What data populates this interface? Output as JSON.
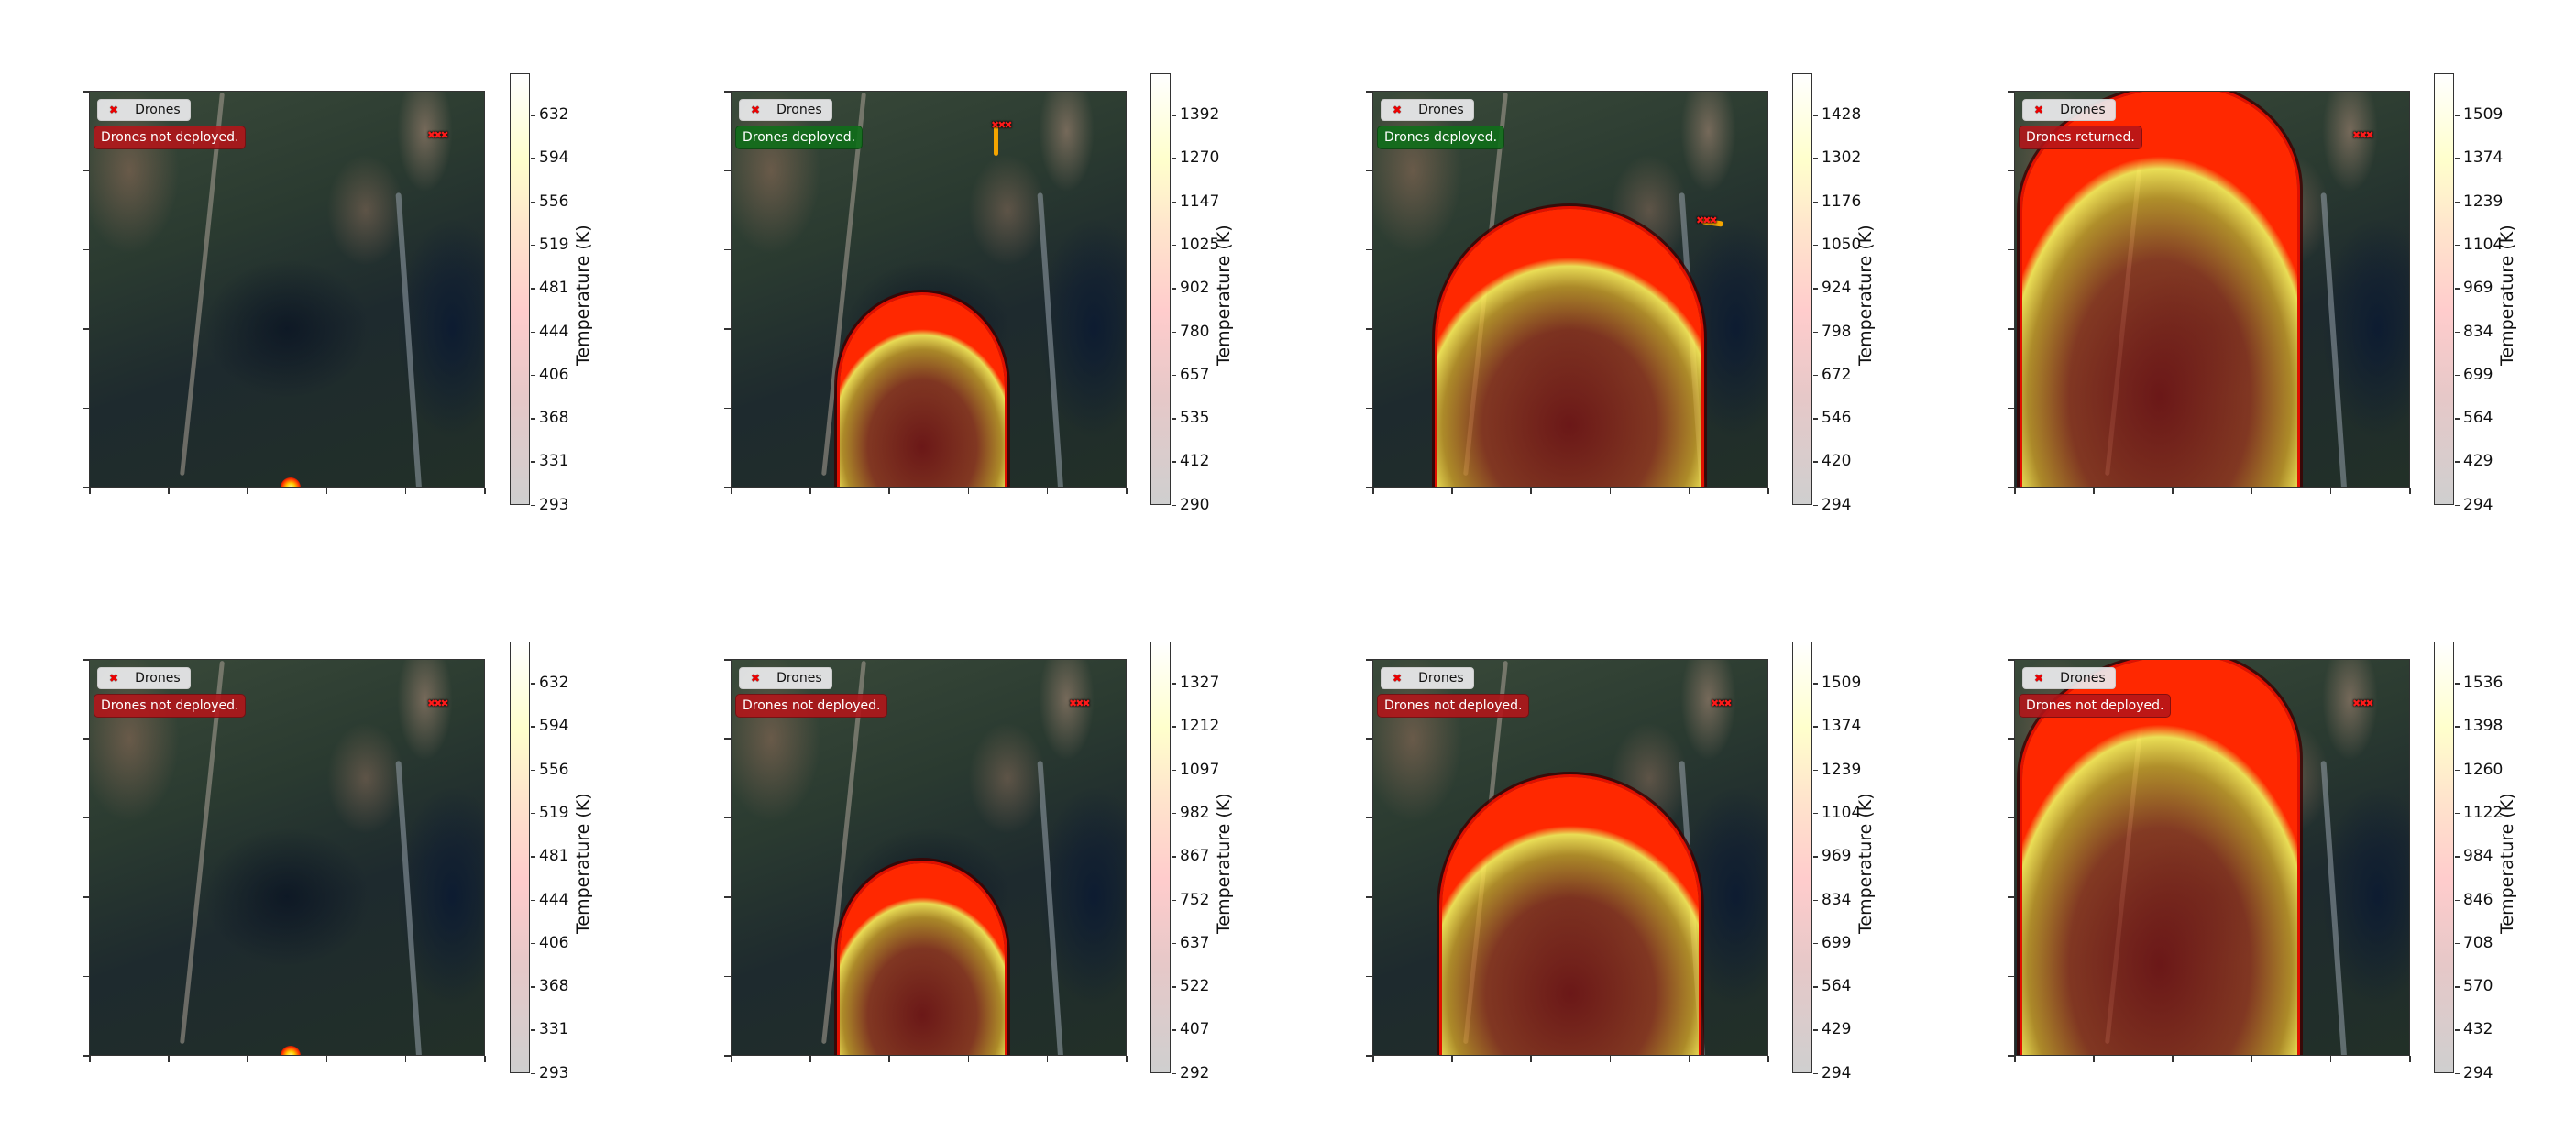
{
  "chart_data": [
    {
      "type": "heatmap",
      "row": 1,
      "col": 1,
      "legend": "Drones",
      "status": "Drones not deployed.",
      "status_color": "#b41419",
      "colorbar_label": "Temperature (K)",
      "colorbar_ticks": [
        293,
        331,
        368,
        406,
        444,
        481,
        519,
        556,
        594,
        632
      ],
      "fire": "small spot at bottom center",
      "drones": "clustered top-right, no trail"
    },
    {
      "type": "heatmap",
      "row": 1,
      "col": 2,
      "legend": "Drones",
      "status": "Drones deployed.",
      "status_color": "#0f6e19",
      "colorbar_label": "Temperature (K)",
      "colorbar_ticks": [
        290,
        412,
        535,
        657,
        780,
        902,
        1025,
        1147,
        1270,
        1392
      ],
      "fire": "dome front at lower center",
      "drones": "top center with orange trail heading down"
    },
    {
      "type": "heatmap",
      "row": 1,
      "col": 3,
      "legend": "Drones",
      "status": "Drones deployed.",
      "status_color": "#0f6e19",
      "colorbar_label": "Temperature (K)",
      "colorbar_ticks": [
        294,
        420,
        546,
        672,
        798,
        924,
        1050,
        1176,
        1302,
        1428
      ],
      "fire": "large dome front",
      "drones": "right side with orange trail"
    },
    {
      "type": "heatmap",
      "row": 1,
      "col": 4,
      "legend": "Drones",
      "status": "Drones returned.",
      "status_color": "#b41419",
      "colorbar_label": "Temperature (K)",
      "colorbar_ticks": [
        294,
        429,
        564,
        699,
        834,
        969,
        1104,
        1239,
        1374,
        1509
      ],
      "fire": "fills most of panel",
      "drones": "clustered top-right"
    },
    {
      "type": "heatmap",
      "row": 2,
      "col": 1,
      "legend": "Drones",
      "status": "Drones not deployed.",
      "status_color": "#b41419",
      "colorbar_label": "Temperature (K)",
      "colorbar_ticks": [
        293,
        331,
        368,
        406,
        444,
        481,
        519,
        556,
        594,
        632
      ],
      "fire": "small spot at bottom center",
      "drones": "clustered top-right"
    },
    {
      "type": "heatmap",
      "row": 2,
      "col": 2,
      "legend": "Drones",
      "status": "Drones not deployed.",
      "status_color": "#b41419",
      "colorbar_label": "Temperature (K)",
      "colorbar_ticks": [
        292,
        407,
        522,
        637,
        752,
        867,
        982,
        1097,
        1212,
        1327
      ],
      "fire": "dome front at lower center",
      "drones": "clustered top-right"
    },
    {
      "type": "heatmap",
      "row": 2,
      "col": 3,
      "legend": "Drones",
      "status": "Drones not deployed.",
      "status_color": "#b41419",
      "colorbar_label": "Temperature (K)",
      "colorbar_ticks": [
        294,
        429,
        564,
        699,
        834,
        969,
        1104,
        1239,
        1374,
        1509
      ],
      "fire": "large dome front",
      "drones": "clustered top-right"
    },
    {
      "type": "heatmap",
      "row": 2,
      "col": 4,
      "legend": "Drones",
      "status": "Drones not deployed.",
      "status_color": "#b41419",
      "colorbar_label": "Temperature (K)",
      "colorbar_ticks": [
        294,
        432,
        570,
        708,
        846,
        984,
        1122,
        1260,
        1398,
        1536
      ],
      "fire": "fills most of panel",
      "drones": "clustered top-right"
    }
  ],
  "panels": [
    {
      "legend": "Drones",
      "status": "Drones not deployed.",
      "cbar_title": "Temperature (K)",
      "ticks": [
        "632",
        "594",
        "556",
        "519",
        "481",
        "444",
        "406",
        "368",
        "331",
        "293"
      ]
    },
    {
      "legend": "Drones",
      "status": "Drones deployed.",
      "cbar_title": "Temperature (K)",
      "ticks": [
        "1392",
        "1270",
        "1147",
        "1025",
        "902",
        "780",
        "657",
        "535",
        "412",
        "290"
      ]
    },
    {
      "legend": "Drones",
      "status": "Drones deployed.",
      "cbar_title": "Temperature (K)",
      "ticks": [
        "1428",
        "1302",
        "1176",
        "1050",
        "924",
        "798",
        "672",
        "546",
        "420",
        "294"
      ]
    },
    {
      "legend": "Drones",
      "status": "Drones returned.",
      "cbar_title": "Temperature (K)",
      "ticks": [
        "1509",
        "1374",
        "1239",
        "1104",
        "969",
        "834",
        "699",
        "564",
        "429",
        "294"
      ]
    },
    {
      "legend": "Drones",
      "status": "Drones not deployed.",
      "cbar_title": "Temperature (K)",
      "ticks": [
        "632",
        "594",
        "556",
        "519",
        "481",
        "444",
        "406",
        "368",
        "331",
        "293"
      ]
    },
    {
      "legend": "Drones",
      "status": "Drones not deployed.",
      "cbar_title": "Temperature (K)",
      "ticks": [
        "1327",
        "1212",
        "1097",
        "982",
        "867",
        "752",
        "637",
        "522",
        "407",
        "292"
      ]
    },
    {
      "legend": "Drones",
      "status": "Drones not deployed.",
      "cbar_title": "Temperature (K)",
      "ticks": [
        "1509",
        "1374",
        "1239",
        "1104",
        "969",
        "834",
        "699",
        "564",
        "429",
        "294"
      ]
    },
    {
      "legend": "Drones",
      "status": "Drones not deployed.",
      "cbar_title": "Temperature (K)",
      "ticks": [
        "1536",
        "1398",
        "1260",
        "1122",
        "984",
        "846",
        "708",
        "570",
        "432",
        "294"
      ]
    }
  ],
  "legend_marker": "✖",
  "drone_marker": "✖✖✖"
}
